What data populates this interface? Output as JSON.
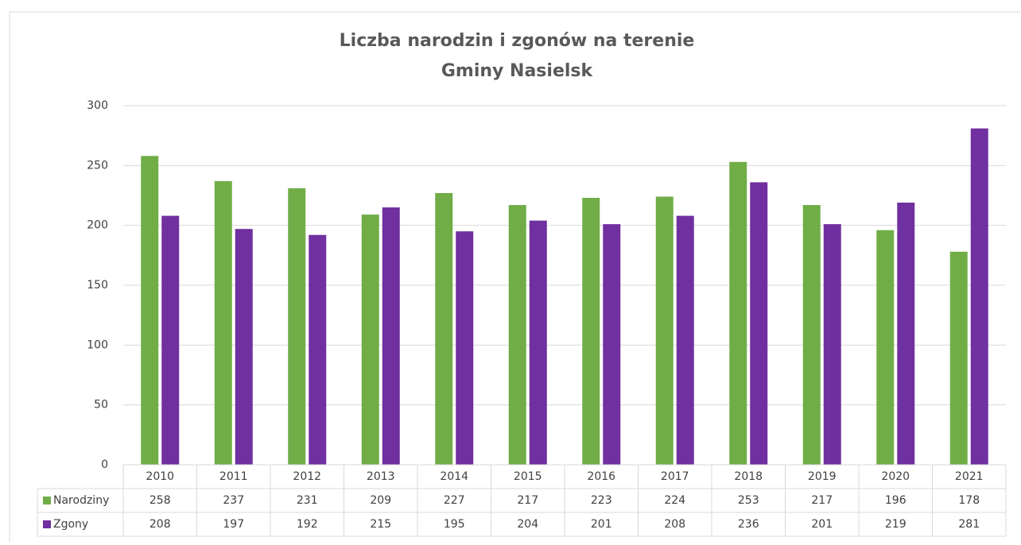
{
  "chart_data": {
    "type": "bar",
    "title": [
      "Liczba narodzin i zgonów na terenie",
      "Gminy Nasielsk"
    ],
    "categories": [
      "2010",
      "2011",
      "2012",
      "2013",
      "2014",
      "2015",
      "2016",
      "2017",
      "2018",
      "2019",
      "2020",
      "2021"
    ],
    "series": [
      {
        "name": "Narodziny",
        "color": "#70ad47",
        "values": [
          258,
          237,
          231,
          209,
          227,
          217,
          223,
          224,
          253,
          217,
          196,
          178
        ]
      },
      {
        "name": "Zgony",
        "color": "#7030a0",
        "values": [
          208,
          197,
          192,
          215,
          195,
          204,
          201,
          208,
          236,
          201,
          219,
          281
        ]
      }
    ],
    "ylim": [
      0,
      300
    ],
    "yticks": [
      0,
      50,
      100,
      150,
      200,
      250,
      300
    ],
    "grid": true,
    "data_table": true
  }
}
